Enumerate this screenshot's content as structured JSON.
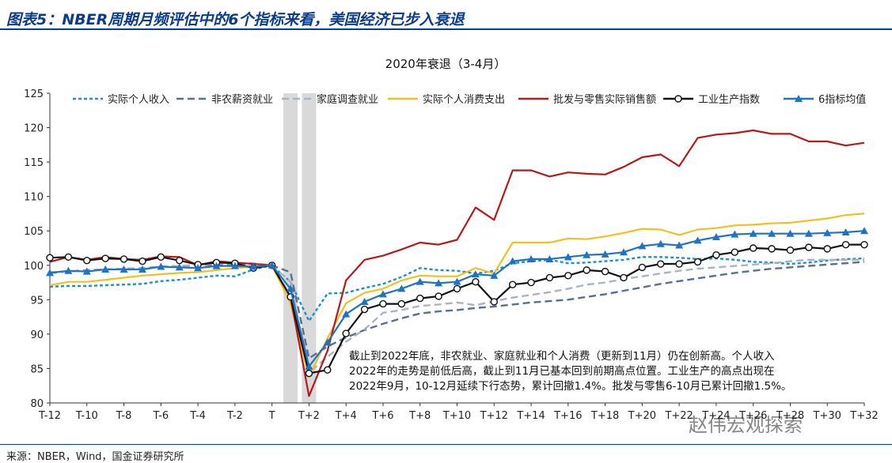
{
  "figure_title": "图表5：NBER周期月频评估中的6个指标来看，美国经济已步入衰退",
  "source_note": "来源：NBER，Wind，国金证券研究所",
  "watermark": "赵伟宏观探索",
  "annotation": [
    "截止到2022年底，非农就业、家庭就业和个人消费（更新到11月）仍在创新高。个人收入",
    "2022年的走势是前低后高，截止到11月已基本回到前期高点位置。工业生产的高点出现在",
    "2022年9月，10-12月延续下行态势，累计回撤1.4%。批发与零售6-10月已累计回撤1.5%。"
  ],
  "chart_data": {
    "type": "line",
    "title": "2020年衰退（3-4月）",
    "ylim": [
      80,
      125
    ],
    "yticks": [
      80,
      85,
      90,
      95,
      100,
      105,
      110,
      115,
      120,
      125
    ],
    "x": [
      -12,
      -11,
      -10,
      -9,
      -8,
      -7,
      -6,
      -5,
      -4,
      -3,
      -2,
      -1,
      0,
      1,
      2,
      3,
      4,
      5,
      6,
      7,
      8,
      9,
      10,
      11,
      12,
      13,
      14,
      15,
      16,
      17,
      18,
      19,
      20,
      21,
      22,
      23,
      24,
      25,
      26,
      27,
      28,
      29,
      30,
      31,
      32
    ],
    "xtick_labels": [
      {
        "x": -12,
        "label": "T-12"
      },
      {
        "x": -10,
        "label": "T-10"
      },
      {
        "x": -8,
        "label": "T-8"
      },
      {
        "x": -6,
        "label": "T-6"
      },
      {
        "x": -4,
        "label": "T-4"
      },
      {
        "x": -2,
        "label": "T-2"
      },
      {
        "x": 0,
        "label": "T"
      },
      {
        "x": 2,
        "label": "T+2"
      },
      {
        "x": 4,
        "label": "T+4"
      },
      {
        "x": 6,
        "label": "T+6"
      },
      {
        "x": 8,
        "label": "T+8"
      },
      {
        "x": 10,
        "label": "T+10"
      },
      {
        "x": 12,
        "label": "T+12"
      },
      {
        "x": 14,
        "label": "T+14"
      },
      {
        "x": 16,
        "label": "T+16"
      },
      {
        "x": 18,
        "label": "T+18"
      },
      {
        "x": 20,
        "label": "T+20"
      },
      {
        "x": 22,
        "label": "T+22"
      },
      {
        "x": 24,
        "label": "T+24"
      },
      {
        "x": 26,
        "label": "T+26"
      },
      {
        "x": 28,
        "label": "T+28"
      },
      {
        "x": 30,
        "label": "T+30"
      },
      {
        "x": 32,
        "label": "T+32"
      }
    ],
    "recession_shading": [
      1,
      2
    ],
    "legend_position": "top",
    "grid": false,
    "series": [
      {
        "name": "实际个人收入",
        "color": "#1f8fc9",
        "style": "dotted",
        "marker": "none",
        "values": [
          96.9,
          97.0,
          97.0,
          97.1,
          97.2,
          97.3,
          97.7,
          97.9,
          98.2,
          98.5,
          98.4,
          99.4,
          100.0,
          97.6,
          91.9,
          95.9,
          96.0,
          96.7,
          97.3,
          98.3,
          99.6,
          99.3,
          99.2,
          98.8,
          99.2,
          100.3,
          100.6,
          100.8,
          100.3,
          100.4,
          100.6,
          100.8,
          101.2,
          101.2,
          101.1,
          100.9,
          101.0,
          100.8,
          100.5,
          100.4,
          100.2,
          100.4,
          100.7,
          100.9,
          101.0
        ]
      },
      {
        "name": "非农薪资就业",
        "color": "#5a6e8f",
        "style": "dashed",
        "marker": "none",
        "values": [
          98.9,
          99.1,
          99.3,
          99.4,
          99.5,
          99.6,
          99.8,
          99.9,
          100.0,
          100.1,
          100.2,
          100.2,
          100.0,
          99.0,
          86.5,
          88.2,
          89.5,
          90.6,
          91.5,
          92.3,
          93.0,
          93.3,
          93.5,
          93.8,
          94.0,
          94.3,
          94.6,
          94.8,
          95.0,
          95.4,
          95.8,
          96.3,
          96.8,
          97.3,
          97.7,
          98.1,
          98.5,
          98.9,
          99.2,
          99.5,
          99.7,
          99.9,
          100.1,
          100.3,
          100.5
        ]
      },
      {
        "name": "家庭调查就业",
        "color": "#a9b3c4",
        "style": "dashed",
        "marker": "none",
        "values": [
          99.0,
          99.1,
          99.2,
          99.4,
          99.5,
          99.6,
          99.8,
          99.9,
          100.1,
          100.2,
          100.3,
          100.3,
          100.0,
          97.6,
          84.4,
          86.7,
          88.9,
          90.7,
          93.1,
          93.5,
          94.1,
          94.3,
          94.6,
          94.2,
          94.8,
          95.3,
          95.7,
          96.1,
          96.6,
          97.2,
          97.5,
          98.0,
          98.4,
          98.8,
          99.2,
          99.5,
          99.7,
          99.9,
          100.1,
          100.3,
          100.6,
          100.8,
          100.8,
          100.8,
          100.8
        ]
      },
      {
        "name": "实际个人消费支出",
        "color": "#f2c01e",
        "style": "solid",
        "marker": "none",
        "values": [
          97.1,
          97.6,
          97.6,
          97.9,
          98.2,
          98.5,
          98.7,
          98.9,
          99.0,
          99.3,
          99.6,
          99.8,
          100.0,
          94.5,
          83.8,
          89.4,
          94.5,
          96.0,
          96.6,
          97.8,
          98.5,
          98.4,
          98.4,
          99.6,
          98.8,
          103.3,
          103.3,
          103.3,
          103.9,
          103.8,
          104.2,
          104.7,
          105.3,
          105.2,
          104.4,
          105.2,
          105.4,
          105.8,
          105.9,
          106.1,
          106.2,
          106.5,
          106.8,
          107.3,
          107.5
        ]
      },
      {
        "name": "批发与零售实际销售额",
        "color": "#b31b1b",
        "style": "solid",
        "marker": "none",
        "values": [
          100.5,
          101.2,
          100.8,
          101.2,
          100.9,
          100.8,
          101.3,
          101.2,
          100.0,
          100.6,
          100.4,
          100.2,
          100.0,
          95.4,
          81.0,
          87.6,
          97.8,
          100.8,
          101.4,
          102.3,
          103.3,
          103.0,
          103.7,
          108.4,
          106.6,
          113.8,
          113.8,
          112.9,
          113.5,
          113.3,
          113.2,
          114.3,
          115.7,
          116.1,
          114.4,
          118.5,
          119.0,
          119.2,
          119.6,
          119.1,
          119.1,
          118.0,
          118.0,
          117.4,
          117.8
        ]
      },
      {
        "name": "工业生产指数",
        "color": "#111111",
        "style": "solid",
        "marker": "circle",
        "values": [
          101.1,
          101.2,
          100.7,
          101.0,
          100.9,
          100.6,
          101.2,
          100.7,
          100.1,
          100.4,
          100.3,
          99.6,
          100.0,
          95.4,
          84.3,
          84.8,
          90.1,
          93.6,
          94.4,
          94.4,
          95.2,
          95.5,
          96.6,
          97.6,
          94.7,
          97.2,
          97.5,
          98.2,
          98.5,
          99.3,
          99.1,
          98.2,
          99.7,
          100.2,
          100.2,
          100.5,
          101.5,
          101.9,
          102.5,
          102.4,
          102.2,
          102.6,
          102.4,
          103.0,
          103.0
        ]
      },
      {
        "name": "6指标均值",
        "color": "#1f73c2",
        "style": "solid",
        "marker": "triangle",
        "values": [
          98.9,
          99.2,
          99.1,
          99.4,
          99.4,
          99.4,
          99.8,
          99.7,
          99.6,
          99.9,
          99.9,
          99.8,
          100.0,
          96.6,
          85.3,
          88.8,
          92.9,
          94.7,
          95.8,
          96.6,
          97.6,
          97.4,
          97.6,
          98.7,
          98.5,
          100.6,
          100.9,
          100.9,
          101.2,
          101.5,
          101.6,
          101.9,
          102.8,
          103.1,
          102.9,
          103.6,
          104.1,
          104.5,
          104.6,
          104.6,
          104.6,
          104.6,
          104.7,
          104.8,
          105.0
        ]
      }
    ]
  }
}
